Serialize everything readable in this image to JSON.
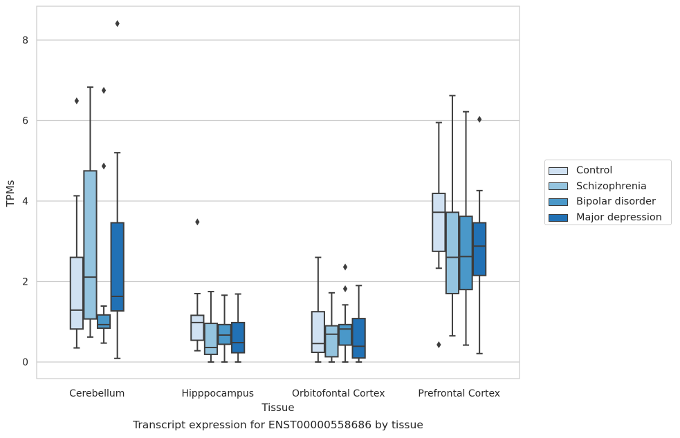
{
  "caption": "Transcript expression for ENST00000558686 by tissue",
  "legend": {
    "items": [
      {
        "label": "Control",
        "color": "#d0e1f2"
      },
      {
        "label": "Schizophrenia",
        "color": "#94c4df"
      },
      {
        "label": "Bipolar disorder",
        "color": "#4a98c9"
      },
      {
        "label": "Major depression",
        "color": "#2171b5"
      }
    ]
  },
  "chart_data": {
    "type": "box",
    "xlabel": "Tissue",
    "ylabel": "TPMs",
    "ylim": [
      -0.4,
      8.85
    ],
    "yticks": [
      0,
      2,
      4,
      6,
      8
    ],
    "grid": "horizontal",
    "legend_position": "right, outside",
    "categories": [
      "Cerebellum",
      "Hipppocampus",
      "Orbitofontal Cortex",
      "Prefrontal Cortex"
    ],
    "series": [
      {
        "name": "Control",
        "color": "#d0e1f2",
        "boxes": [
          {
            "whisker_low": 0.35,
            "q1": 0.82,
            "median": 1.29,
            "q3": 2.6,
            "whisker_high": 4.13,
            "outliers": [
              6.49
            ]
          },
          {
            "whisker_low": 0.28,
            "q1": 0.54,
            "median": 0.98,
            "q3": 1.16,
            "whisker_high": 1.7,
            "outliers": [
              3.48
            ]
          },
          {
            "whisker_low": 0.0,
            "q1": 0.24,
            "median": 0.46,
            "q3": 1.25,
            "whisker_high": 2.6,
            "outliers": []
          },
          {
            "whisker_low": 2.33,
            "q1": 2.75,
            "median": 3.72,
            "q3": 4.19,
            "whisker_high": 5.95,
            "outliers": [
              0.43
            ]
          }
        ]
      },
      {
        "name": "Schizophrenia",
        "color": "#94c4df",
        "boxes": [
          {
            "whisker_low": 0.62,
            "q1": 1.07,
            "median": 2.11,
            "q3": 4.75,
            "whisker_high": 6.83,
            "outliers": []
          },
          {
            "whisker_low": 0.0,
            "q1": 0.19,
            "median": 0.36,
            "q3": 0.96,
            "whisker_high": 1.75,
            "outliers": []
          },
          {
            "whisker_low": 0.0,
            "q1": 0.13,
            "median": 0.69,
            "q3": 0.9,
            "whisker_high": 1.72,
            "outliers": []
          },
          {
            "whisker_low": 0.65,
            "q1": 1.7,
            "median": 2.6,
            "q3": 3.72,
            "whisker_high": 6.62,
            "outliers": []
          }
        ]
      },
      {
        "name": "Bipolar disorder",
        "color": "#4a98c9",
        "boxes": [
          {
            "whisker_low": 0.47,
            "q1": 0.84,
            "median": 0.93,
            "q3": 1.17,
            "whisker_high": 1.39,
            "outliers": [
              4.87,
              6.75
            ]
          },
          {
            "whisker_low": 0.0,
            "q1": 0.44,
            "median": 0.67,
            "q3": 0.93,
            "whisker_high": 1.66,
            "outliers": []
          },
          {
            "whisker_low": 0.0,
            "q1": 0.42,
            "median": 0.82,
            "q3": 0.93,
            "whisker_high": 1.42,
            "outliers": [
              1.82,
              2.36
            ]
          },
          {
            "whisker_low": 0.42,
            "q1": 1.8,
            "median": 2.62,
            "q3": 3.62,
            "whisker_high": 6.22,
            "outliers": []
          }
        ]
      },
      {
        "name": "Major depression",
        "color": "#2171b5",
        "boxes": [
          {
            "whisker_low": 0.09,
            "q1": 1.27,
            "median": 1.63,
            "q3": 3.46,
            "whisker_high": 5.2,
            "outliers": [
              8.41
            ]
          },
          {
            "whisker_low": 0.0,
            "q1": 0.23,
            "median": 0.48,
            "q3": 0.98,
            "whisker_high": 1.69,
            "outliers": []
          },
          {
            "whisker_low": 0.0,
            "q1": 0.1,
            "median": 0.39,
            "q3": 1.08,
            "whisker_high": 1.9,
            "outliers": []
          },
          {
            "whisker_low": 0.21,
            "q1": 2.15,
            "median": 2.88,
            "q3": 3.46,
            "whisker_high": 4.26,
            "outliers": [
              6.03
            ]
          }
        ]
      }
    ]
  }
}
